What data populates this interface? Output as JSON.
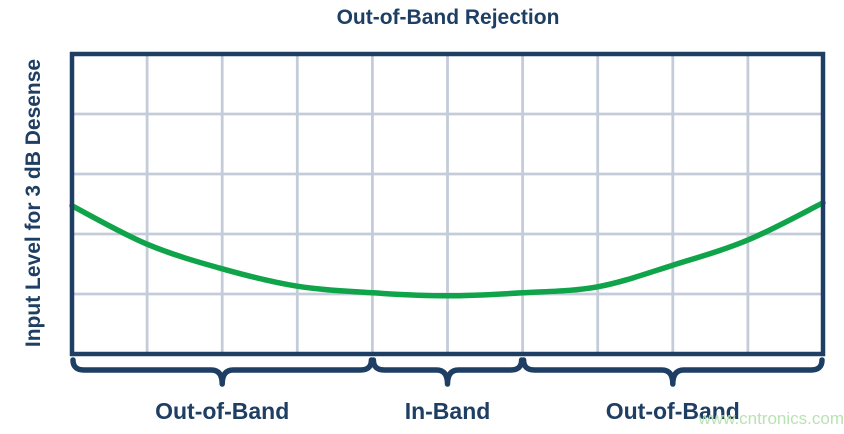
{
  "title": "Out-of-Band Rejection",
  "y_axis_label": "Input Level for 3 dB Desense",
  "watermark": "www.cntronics.com",
  "band_labels": [
    "Out-of-Band",
    "In-Band",
    "Out-of-Band"
  ],
  "colors": {
    "navy": "#1e3f63",
    "green": "#0fa44a",
    "grid": "#c4ccd9",
    "background": "#ffffff",
    "watermark_green": "#b5e2ae"
  },
  "chart_data": {
    "type": "line",
    "title": "Out-of-Band Rejection",
    "xlabel": "",
    "ylabel": "Input Level for 3 dB Desense",
    "x_axis_ticks": "none (unlabeled frequency axis spanning 10 grid columns)",
    "y_axis_ticks": "none (unlabeled level axis spanning 5 grid rows)",
    "grid": {
      "columns": 10,
      "rows": 5,
      "visible": true
    },
    "legend": "none",
    "series": [
      {
        "name": "Input level required for 3 dB desense vs frequency (bathtub curve)",
        "color": "#0fa44a",
        "points": [
          {
            "x": 0,
            "y_rows_from_top": 2.53
          },
          {
            "x": 1,
            "y_rows_from_top": 3.17
          },
          {
            "x": 2,
            "y_rows_from_top": 3.58
          },
          {
            "x": 3,
            "y_rows_from_top": 3.87
          },
          {
            "x": 4,
            "y_rows_from_top": 3.98
          },
          {
            "x": 5,
            "y_rows_from_top": 4.03
          },
          {
            "x": 6,
            "y_rows_from_top": 3.98
          },
          {
            "x": 7,
            "y_rows_from_top": 3.88
          },
          {
            "x": 8,
            "y_rows_from_top": 3.52
          },
          {
            "x": 9,
            "y_rows_from_top": 3.1
          },
          {
            "x": 10,
            "y_rows_from_top": 2.48
          }
        ]
      }
    ],
    "regions": [
      {
        "label": "Out-of-Band",
        "x_start": 0,
        "x_end": 4
      },
      {
        "label": "In-Band",
        "x_start": 4,
        "x_end": 6
      },
      {
        "label": "Out-of-Band",
        "x_start": 6,
        "x_end": 10
      }
    ]
  }
}
